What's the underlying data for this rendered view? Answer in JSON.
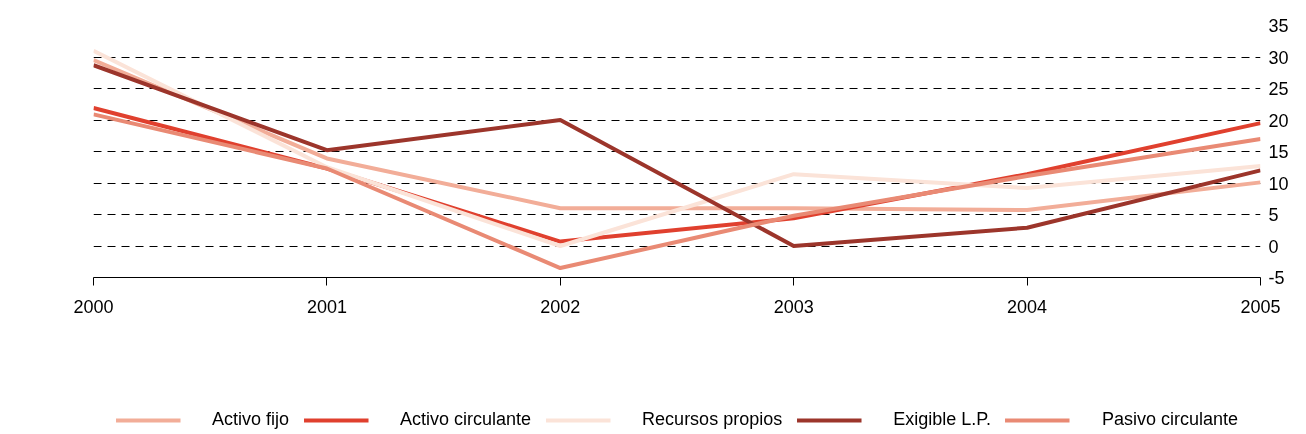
{
  "chart_data": {
    "type": "line",
    "x": [
      2000,
      2001,
      2002,
      2003,
      2004,
      2005
    ],
    "xlim": [
      2000,
      2005
    ],
    "xticks": [
      2000,
      2001,
      2002,
      2003,
      2004,
      2005
    ],
    "ylim": [
      -5,
      35
    ],
    "yticks": [
      -5,
      0,
      5,
      10,
      15,
      20,
      25,
      30,
      35
    ],
    "grid": "y",
    "legend": "bottom",
    "line_style": "solid",
    "series": [
      {
        "name": "Activo fijo",
        "color": "#f2ad98",
        "values": [
          29.5,
          13.9,
          6.0,
          6.0,
          5.7,
          10.1
        ]
      },
      {
        "name": "Activo circulante",
        "color": "#e0402e",
        "values": [
          21.9,
          12.3,
          0.7,
          4.4,
          11.4,
          19.5
        ]
      },
      {
        "name": "Recursos propios",
        "color": "#fbe3d8",
        "values": [
          31.0,
          12.5,
          0.0,
          11.4,
          9.2,
          12.7
        ]
      },
      {
        "name": "Exigible L.P.",
        "color": "#9c352b",
        "values": [
          28.7,
          15.2,
          20.0,
          0.0,
          2.9,
          12.0
        ]
      },
      {
        "name": "Pasivo circulante",
        "color": "#e98a74",
        "values": [
          20.9,
          12.3,
          -3.5,
          4.8,
          11.1,
          17.0
        ]
      }
    ]
  }
}
